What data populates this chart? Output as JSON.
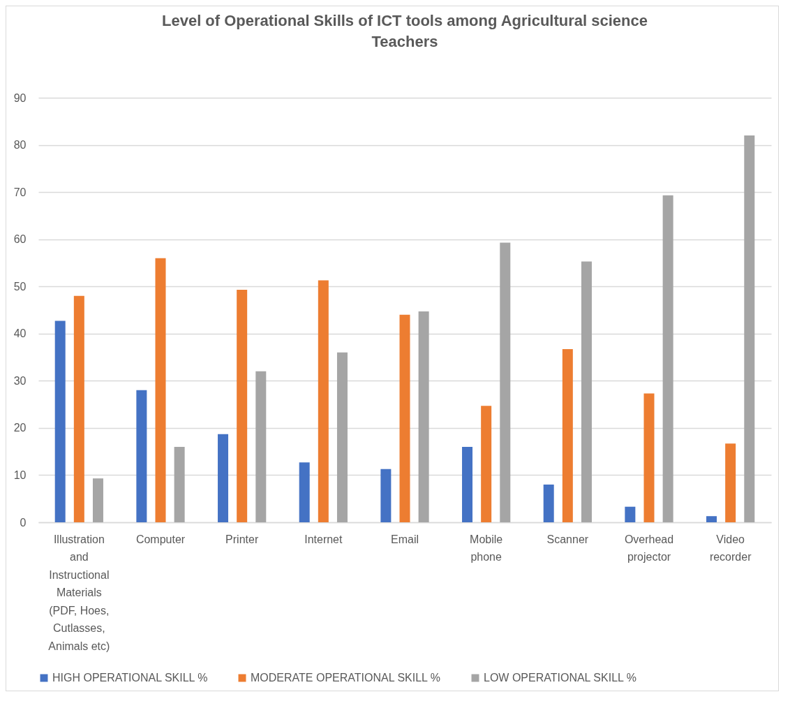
{
  "chart_data": {
    "type": "bar",
    "title": "Level of Operational Skills of ICT tools among Agricultural science Teachers",
    "categories": [
      "Illustration and Instructional Materials (PDF, Hoes, Cutlasses, Animals etc)",
      "Computer",
      "Printer",
      "Internet",
      "Email",
      "Mobile phone",
      "Scanner",
      "Overhead projector",
      "Video recorder"
    ],
    "series": [
      {
        "name": "HIGH OPERATIONAL SKILL %",
        "color": "#4472c4",
        "values": [
          42.7,
          28,
          18.7,
          12.7,
          11.3,
          16,
          8,
          3.3,
          1.3
        ]
      },
      {
        "name": "MODERATE OPERATIONAL SKILL %",
        "color": "#ed7d31",
        "values": [
          48,
          56,
          49.3,
          51.3,
          44,
          24.7,
          36.7,
          27.3,
          16.7
        ]
      },
      {
        "name": "LOW OPERATIONAL SKILL %",
        "color": "#a5a5a5",
        "values": [
          9.3,
          16,
          32,
          36,
          44.7,
          59.3,
          55.3,
          69.3,
          82
        ]
      }
    ],
    "ylim": [
      0,
      90
    ],
    "yticks": [
      0,
      10,
      20,
      30,
      40,
      50,
      60,
      70,
      80,
      90
    ],
    "grid": "y",
    "legend": "bottom"
  }
}
